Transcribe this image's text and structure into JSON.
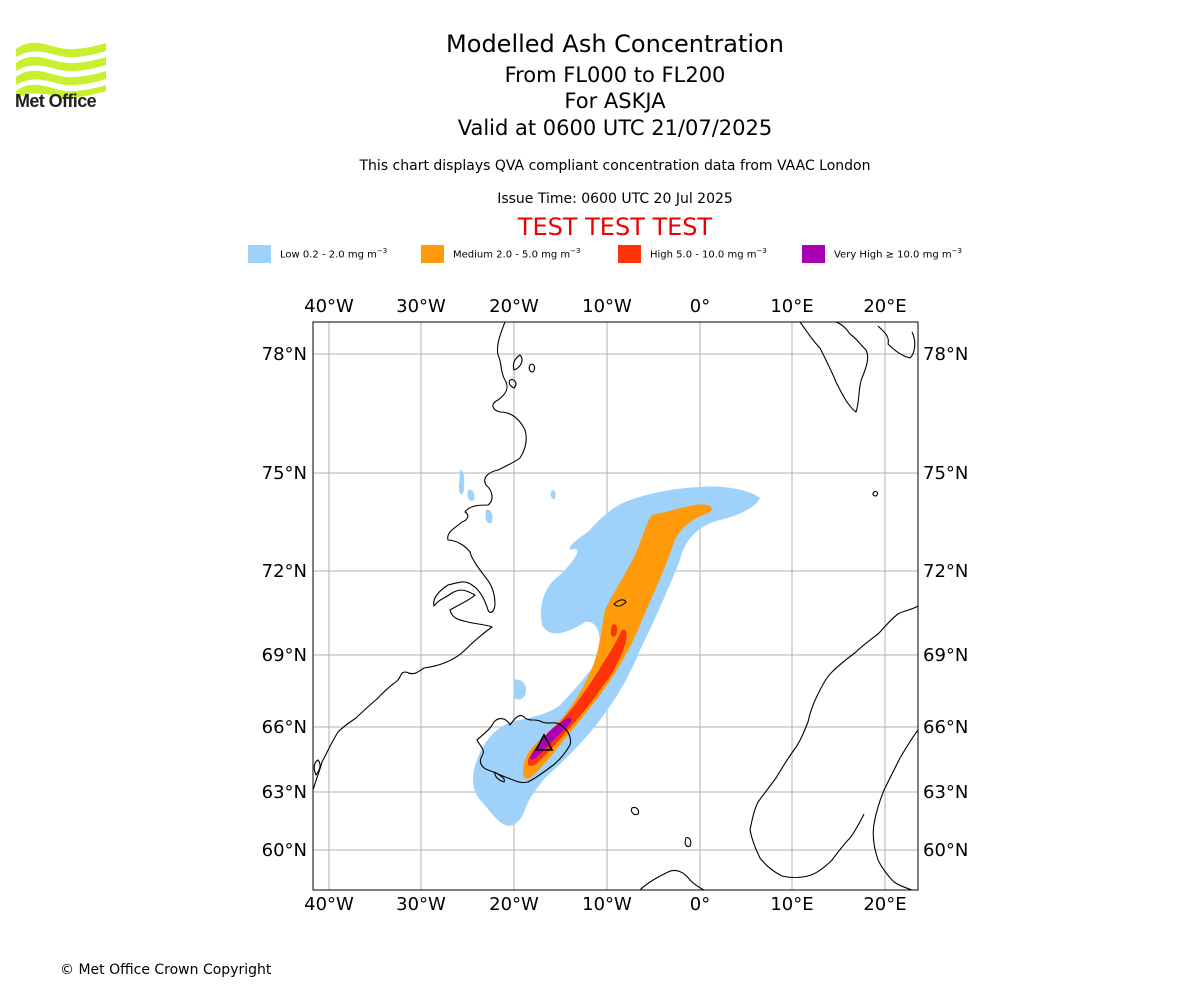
{
  "logo": {
    "text": "Met Office",
    "color": "#c8f02e"
  },
  "title": {
    "main": "Modelled Ash Concentration",
    "levels": "From FL000 to FL200",
    "volcano": "For ASKJA",
    "valid": "Valid at 0600 UTC 21/07/2025",
    "description": "This chart displays QVA compliant concentration data from VAAC London",
    "issue": "Issue Time: 0600 UTC 20 Jul 2025",
    "test_banner": "TEST TEST TEST"
  },
  "legend": [
    {
      "prefix": "Low 0.2 - 2.0 mg m",
      "exp": "−3",
      "color": "#9fd2fa"
    },
    {
      "prefix": "Medium 2.0 - 5.0 mg m",
      "exp": "−3",
      "color": "#ff9a0a"
    },
    {
      "prefix": "High 5.0 - 10.0 mg m",
      "exp": "−3",
      "color": "#ff3308"
    },
    {
      "prefix": "Very High  ≥  10.0 mg m",
      "exp": "−3",
      "color": "#a700b5"
    }
  ],
  "map": {
    "lon_labels": [
      "40°W",
      "30°W",
      "20°W",
      "10°W",
      "0°",
      "10°E",
      "20°E"
    ],
    "lat_labels": [
      "78°N",
      "75°N",
      "72°N",
      "69°N",
      "66°N",
      "63°N",
      "60°N"
    ],
    "volcano_marker": "triangle"
  },
  "footer": {
    "copyright": "© Met Office Crown Copyright"
  }
}
